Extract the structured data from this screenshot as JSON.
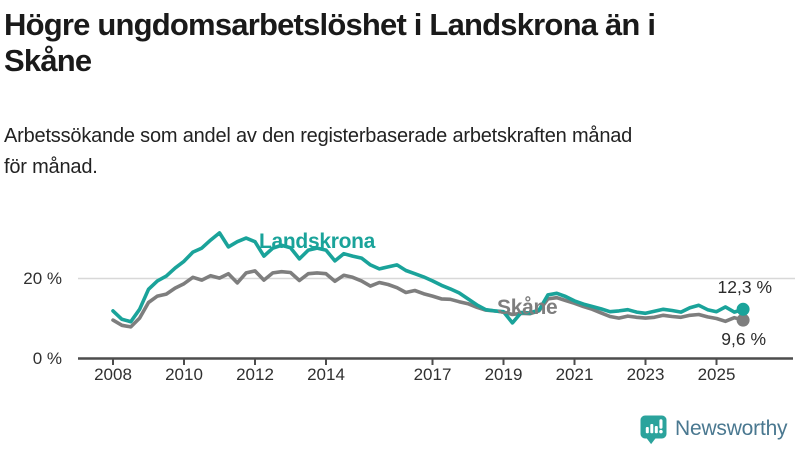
{
  "header": {
    "title": "Högre ungdomsarbetslöshet i Landskrona än i Skåne",
    "title_lines": [
      "Högre ungdomsarbetslöshet i Landskrona än i",
      "Skåne"
    ],
    "subtitle": "Arbetssökande som andel av den registerbaserade arbetskraften månad för månad.",
    "subtitle_lines": [
      "Arbetssökande som andel av den registerbaserade arbetskraften månad",
      "för månad."
    ]
  },
  "colors": {
    "landskrona": "#1aa39a",
    "skane": "#7e7e7e",
    "grid": "#d8d8d8",
    "axis": "#4d4d4d",
    "tick_text": "#303030",
    "brand_teal": "#2ba39c",
    "brand_text": "#4a7890"
  },
  "chart_data": {
    "type": "line",
    "y_unit": "%",
    "ylim": [
      0,
      34
    ],
    "xlim": [
      2007.9,
      2026.1
    ],
    "grid_y": [
      20
    ],
    "legend_position": "inline labels next to lines",
    "x": [
      2008,
      2008.25,
      2008.5,
      2008.75,
      2009,
      2009.25,
      2009.5,
      2009.75,
      2010,
      2010.25,
      2010.5,
      2010.75,
      2011,
      2011.25,
      2011.5,
      2011.75,
      2012,
      2012.25,
      2012.5,
      2012.75,
      2013,
      2013.25,
      2013.5,
      2013.75,
      2014,
      2014.25,
      2014.5,
      2014.75,
      2015,
      2015.25,
      2015.5,
      2015.75,
      2016,
      2016.25,
      2016.5,
      2016.75,
      2017,
      2017.25,
      2017.5,
      2017.75,
      2018,
      2018.25,
      2018.5,
      2018.75,
      2019,
      2019.25,
      2019.5,
      2019.75,
      2020,
      2020.25,
      2020.5,
      2020.75,
      2021,
      2021.25,
      2021.5,
      2021.75,
      2022,
      2022.25,
      2022.5,
      2022.75,
      2023,
      2023.25,
      2023.5,
      2023.75,
      2024,
      2024.25,
      2024.5,
      2024.75,
      2025,
      2025.25,
      2025.5,
      2025.75
    ],
    "series": [
      {
        "name": "Landskrona",
        "slug": "landskrona",
        "color": "#1aa39a",
        "end_label": "12,3 %",
        "end_value": 12.3,
        "values": [
          11.9,
          9.8,
          9.2,
          12.3,
          17.3,
          19.4,
          20.6,
          22.6,
          24.3,
          26.6,
          27.6,
          29.6,
          31.4,
          27.9,
          29.2,
          30.1,
          29.2,
          25.6,
          27.6,
          28.3,
          27.7,
          24.9,
          27.1,
          27.6,
          27.1,
          24.4,
          26.2,
          25.6,
          25.1,
          23.4,
          22.4,
          22.9,
          23.4,
          22.0,
          21.2,
          20.4,
          19.4,
          18.3,
          17.4,
          16.4,
          14.9,
          13.4,
          12.2,
          11.9,
          11.7,
          8.9,
          11.5,
          11.4,
          12.1,
          15.9,
          16.3,
          15.5,
          14.4,
          13.6,
          13.0,
          12.4,
          11.7,
          11.9,
          12.2,
          11.6,
          11.3,
          11.8,
          12.3,
          12.0,
          11.6,
          12.7,
          13.3,
          12.2,
          11.7,
          12.9,
          11.6,
          12.3
        ]
      },
      {
        "name": "Skåne",
        "slug": "skane",
        "color": "#7e7e7e",
        "end_label": "9,6 %",
        "end_value": 9.6,
        "values": [
          9.6,
          8.3,
          7.9,
          10.1,
          14.0,
          15.6,
          16.1,
          17.6,
          18.7,
          20.3,
          19.6,
          20.7,
          20.1,
          21.2,
          18.9,
          21.4,
          21.9,
          19.6,
          21.4,
          21.7,
          21.5,
          19.5,
          21.2,
          21.4,
          21.2,
          19.3,
          20.8,
          20.3,
          19.4,
          18.1,
          19.0,
          18.5,
          17.7,
          16.5,
          17.0,
          16.2,
          15.6,
          14.9,
          14.8,
          14.2,
          13.7,
          12.8,
          12.1,
          11.9,
          11.6,
          11.0,
          11.3,
          11.2,
          11.9,
          14.9,
          15.2,
          14.5,
          13.8,
          13.0,
          12.3,
          11.4,
          10.5,
          10.1,
          10.6,
          10.3,
          10.1,
          10.3,
          10.8,
          10.5,
          10.3,
          10.8,
          11.0,
          10.4,
          10.0,
          9.3,
          10.2,
          9.6
        ]
      }
    ],
    "x_ticks": [
      {
        "value": 2008,
        "label": "2008"
      },
      {
        "value": 2010,
        "label": "2010"
      },
      {
        "value": 2012,
        "label": "2012"
      },
      {
        "value": 2014,
        "label": "2014"
      },
      {
        "value": 2017,
        "label": "2017"
      },
      {
        "value": 2019,
        "label": "2019"
      },
      {
        "value": 2021,
        "label": "2021"
      },
      {
        "value": 2023,
        "label": "2023"
      },
      {
        "value": 2025,
        "label": "2025"
      }
    ],
    "y_ticks": [
      {
        "value": 20,
        "label": "20 %"
      },
      {
        "value": 0,
        "label": "0 %"
      }
    ]
  },
  "footer": {
    "brand": "Newsworthy",
    "logo_icon": "speech-bubble-bar-chart-icon"
  }
}
